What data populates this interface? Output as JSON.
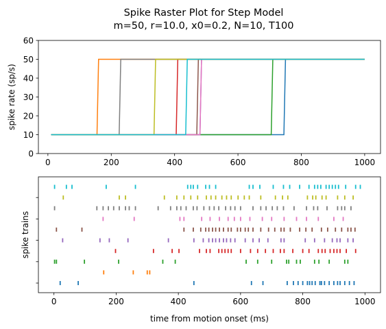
{
  "figure": {
    "title_line1": "Spike Raster Plot for Step Model",
    "title_line2": "m=50, r=10.0, x0=0.2, N=10, T100"
  },
  "colors": [
    "#1f77b4",
    "#ff7f0e",
    "#2ca02c",
    "#d62728",
    "#9467bd",
    "#8c564b",
    "#e377c2",
    "#7f7f7f",
    "#bcbd22",
    "#17becf"
  ],
  "chart_data": [
    {
      "type": "line",
      "ylabel": "spike rate (sp/s)",
      "xlim": [
        -30,
        1050
      ],
      "ylim": [
        0,
        60
      ],
      "xticks": [
        0,
        200,
        400,
        600,
        800,
        1000
      ],
      "yticks": [
        0,
        10,
        20,
        30,
        40,
        50,
        60
      ],
      "low_rate": 10,
      "high_rate": 50,
      "t_start": 10,
      "t_end": 1000,
      "series": [
        {
          "step_time": 745
        },
        {
          "step_time": 155
        },
        {
          "step_time": 705
        },
        {
          "step_time": 405
        },
        {
          "step_time": 480
        },
        {
          "step_time": 470
        },
        {
          "step_time": 480
        },
        {
          "step_time": 225
        },
        {
          "step_time": 335
        },
        {
          "step_time": 435
        }
      ]
    },
    {
      "type": "scatter",
      "xlabel": "time from motion onset (ms)",
      "ylabel": "spike trains",
      "xlim": [
        -50,
        1050
      ],
      "xticks": [
        0,
        200,
        400,
        600,
        800,
        1000
      ],
      "trains": [
        [
          20,
          78,
          450,
          635,
          672,
          750,
          770,
          785,
          800,
          815,
          822,
          830,
          840,
          855,
          860,
          870,
          885,
          900,
          912,
          920,
          935,
          950,
          965
        ],
        [
          160,
          255,
          300,
          308
        ],
        [
          2,
          8,
          98,
          208,
          350,
          390,
          618,
          655,
          700,
          748,
          755,
          780,
          792,
          838,
          852,
          885,
          935,
          945
        ],
        [
          198,
          320,
          380,
          402,
          468,
          490,
          502,
          530,
          540,
          550,
          560,
          570,
          600,
          632,
          655,
          680,
          705,
          728,
          740,
          768,
          800,
          820,
          850,
          862,
          872,
          888,
          900,
          910,
          920,
          940,
          970
        ],
        [
          28,
          148,
          178,
          238,
          368,
          450,
          480,
          498,
          510,
          520,
          532,
          545,
          555,
          568,
          582,
          615,
          640,
          660,
          688,
          730,
          740,
          808,
          838,
          870,
          895,
          910,
          920,
          945,
          962
        ],
        [
          8,
          90,
          418,
          448,
          472,
          488,
          498,
          510,
          520,
          532,
          545,
          560,
          570,
          590,
          600,
          615,
          625,
          640,
          665,
          690,
          710,
          730,
          740,
          760,
          790,
          810,
          830,
          860,
          880,
          905,
          925,
          945,
          955,
          968
        ],
        [
          158,
          258,
          405,
          418,
          475,
          502,
          532,
          560,
          580,
          600,
          630,
          670,
          700,
          740,
          780,
          812,
          850,
          900,
          930
        ],
        [
          2,
          138,
          158,
          175,
          192,
          210,
          230,
          242,
          262,
          335,
          375,
          395,
          408,
          425,
          448,
          460,
          482,
          500,
          515,
          530,
          552,
          568,
          582,
          600,
          640,
          665,
          682,
          702,
          718,
          738,
          772,
          812,
          835,
          848,
          878,
          912,
          925,
          935,
          955
        ],
        [
          30,
          210,
          230,
          355,
          395,
          418,
          440,
          462,
          490,
          505,
          520,
          540,
          555,
          570,
          592,
          612,
          628,
          665,
          712,
          735,
          752,
          815,
          832,
          842,
          862,
          875,
          912,
          935,
          962
        ],
        [
          2,
          40,
          58,
          168,
          262,
          430,
          440,
          448,
          462,
          488,
          500,
          520,
          628,
          640,
          662,
          705,
          738,
          758,
          790,
          820,
          838,
          848,
          858,
          875,
          885,
          895,
          905,
          915,
          938,
          970,
          985
        ]
      ]
    }
  ]
}
